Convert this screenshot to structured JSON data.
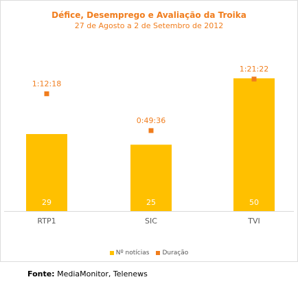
{
  "chart_data": {
    "type": "bar",
    "title": "Défice, Desemprego e Avaliação da Troika",
    "subtitle": "27 de Agosto a 2 de Setembro de 2012",
    "categories": [
      "RTP1",
      "SIC",
      "TVI"
    ],
    "series": [
      {
        "name": "Nº notícias",
        "type": "bar",
        "color": "#ffc000",
        "values": [
          29,
          25,
          50
        ],
        "labels": [
          "29",
          "25",
          "50"
        ]
      },
      {
        "name": "Duração",
        "type": "scatter",
        "color": "#f07d1d",
        "values_minutes": [
          72.3,
          49.6,
          81.37
        ],
        "labels": [
          "1:12:18",
          "0:49:36",
          "1:21:22"
        ]
      }
    ],
    "ylim_bars": [
      0,
      60
    ],
    "ylim_duration_minutes": [
      0,
      100
    ],
    "legend_position": "bottom",
    "grid": false
  },
  "source": {
    "label": "Fonte:",
    "text": " MediaMonitor, Telenews"
  }
}
